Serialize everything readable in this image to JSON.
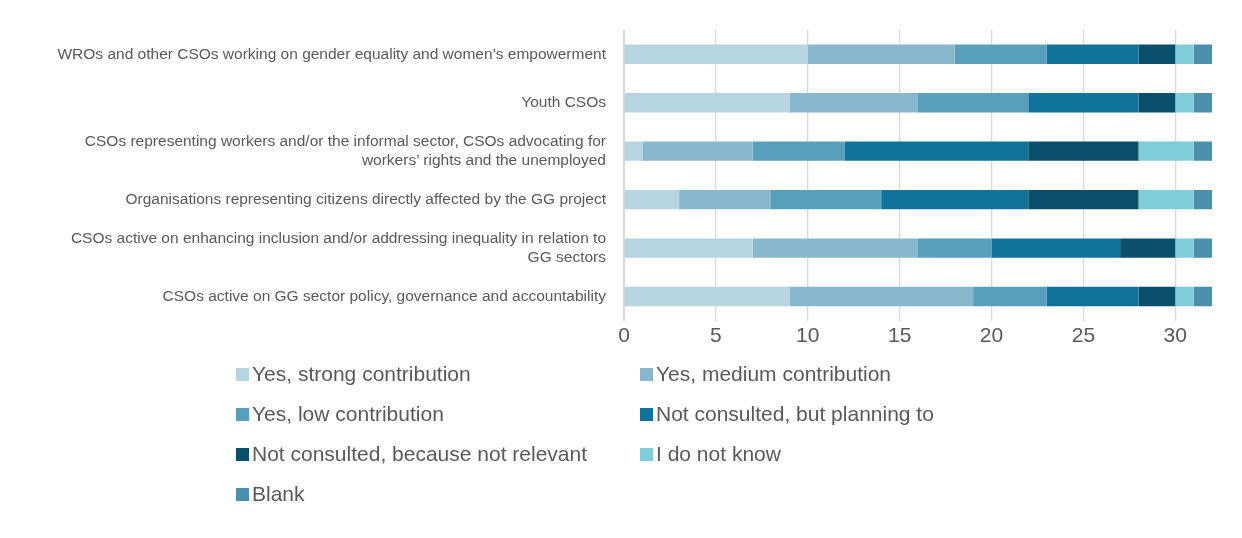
{
  "chart_data": {
    "type": "bar",
    "orientation": "horizontal",
    "stacked": true,
    "categories": [
      "WROs and other CSOs working on gender equality and women’s empowerment",
      "Youth CSOs",
      "CSOs representing workers and/or the informal sector, CSOs advocating for workers’ rights and the unemployed",
      "Organisations representing citizens directly affected by the GG project",
      "CSOs active on enhancing inclusion and/or addressing inequality in relation to GG sectors",
      "CSOs active on GG sector policy, governance and accountability"
    ],
    "series": [
      {
        "name": "Yes, strong contribution",
        "color": "#b7d5e0",
        "values": [
          10,
          9,
          1,
          3,
          7,
          9
        ]
      },
      {
        "name": "Yes, medium contribution",
        "color": "#88b8ce",
        "values": [
          8,
          7,
          6,
          5,
          9,
          10
        ]
      },
      {
        "name": "Yes, low contribution",
        "color": "#589fbb",
        "values": [
          5,
          6,
          5,
          6,
          4,
          4
        ]
      },
      {
        "name": "Not consulted, but planning to",
        "color": "#10739b",
        "values": [
          5,
          6,
          10,
          8,
          7,
          5
        ]
      },
      {
        "name": "Not consulted, because not relevant",
        "color": "#0b4f6c",
        "values": [
          2,
          2,
          6,
          6,
          3,
          2
        ]
      },
      {
        "name": "I do not know",
        "color": "#7fcdd8",
        "values": [
          1,
          1,
          3,
          3,
          1,
          1
        ]
      },
      {
        "name": "Blank",
        "color": "#4a8fab",
        "values": [
          1,
          1,
          1,
          1,
          1,
          1
        ]
      }
    ],
    "xlim": [
      0,
      32
    ],
    "xticks": [
      0,
      5,
      10,
      15,
      20,
      25,
      30
    ],
    "grid": "x",
    "legend": "bottom"
  }
}
